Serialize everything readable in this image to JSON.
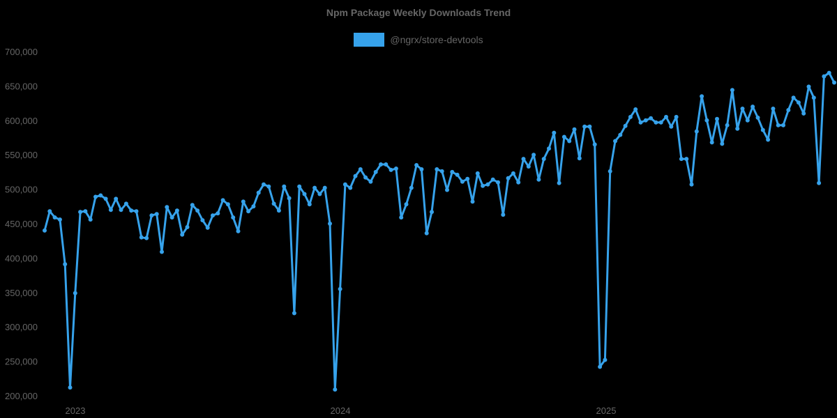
{
  "chart_data": {
    "type": "line",
    "title": "Npm Package Weekly Downloads Trend",
    "legend": [
      {
        "label": "@ngrx/store-devtools",
        "color": "#36a2eb"
      }
    ],
    "legend_position": "top",
    "xlabel": "",
    "ylabel": "",
    "ylim": [
      200000,
      700000
    ],
    "yticks": [
      "200,000",
      "250,000",
      "300,000",
      "350,000",
      "400,000",
      "450,000",
      "500,000",
      "550,000",
      "600,000",
      "650,000",
      "700,000"
    ],
    "xticks": [
      "2023",
      "2024",
      "2025"
    ],
    "grid": false,
    "series": [
      {
        "name": "@ngrx/store-devtools",
        "color": "#36a2eb",
        "values": [
          441000,
          469000,
          460000,
          457000,
          392000,
          213000,
          350000,
          468000,
          469000,
          457000,
          490000,
          492000,
          487000,
          471000,
          487000,
          471000,
          480000,
          470000,
          469000,
          431000,
          430000,
          463000,
          465000,
          410000,
          475000,
          460000,
          470000,
          435000,
          446000,
          478000,
          470000,
          456000,
          445000,
          463000,
          466000,
          485000,
          479000,
          460000,
          440000,
          483000,
          469000,
          476000,
          496000,
          508000,
          505000,
          480000,
          470000,
          505000,
          488000,
          321000,
          505000,
          494000,
          479000,
          503000,
          494000,
          503000,
          451000,
          210000,
          356000,
          508000,
          503000,
          520000,
          530000,
          518000,
          512000,
          526000,
          537000,
          537000,
          529000,
          531000,
          460000,
          479000,
          503000,
          536000,
          530000,
          437000,
          468000,
          530000,
          527000,
          500000,
          526000,
          522000,
          512000,
          516000,
          483000,
          524000,
          506000,
          508000,
          515000,
          511000,
          464000,
          517000,
          524000,
          511000,
          545000,
          534000,
          551000,
          515000,
          545000,
          560000,
          583000,
          510000,
          577000,
          571000,
          588000,
          546000,
          592000,
          592000,
          566000,
          243000,
          253000,
          527000,
          571000,
          580000,
          593000,
          606000,
          617000,
          598000,
          601000,
          604000,
          598000,
          598000,
          606000,
          592000,
          606000,
          545000,
          545000,
          508000,
          585000,
          636000,
          601000,
          569000,
          603000,
          567000,
          594000,
          645000,
          589000,
          618000,
          601000,
          621000,
          605000,
          587000,
          573000,
          618000,
          594000,
          594000,
          616000,
          634000,
          627000,
          611000,
          650000,
          634000,
          510000,
          665000,
          670000,
          656000
        ]
      }
    ],
    "x_range": {
      "start_week_label": "late 2022",
      "end_week_label": "2025",
      "points": 156
    }
  }
}
